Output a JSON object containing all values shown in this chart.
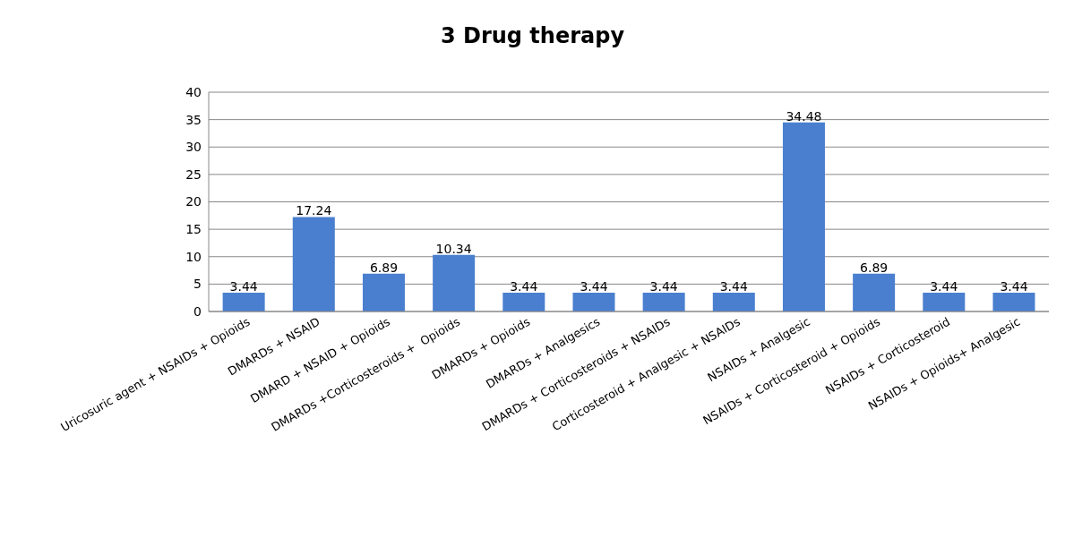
{
  "chart_data": {
    "type": "bar",
    "title": "3 Drug therapy",
    "categories": [
      "Uricosuric agent + NSAIDs + Opioids",
      "DMARDs + NSAID",
      "DMARD + NSAID + Opioids",
      "DMARDs +Corticosteroids +  Opioids",
      "DMARDs + Opioids",
      "DMARDs + Analgesics",
      "DMARDs + Corticosteroids + NSAIDs",
      "Corticosteroid + Analgesic + NSAIDs",
      "NSAIDs + Analgesic",
      "NSAIDs + Corticosteroid + Opioids",
      "NSAIDs + Corticosteroid",
      "NSAIDs + Opioids+ Analgesic"
    ],
    "values": [
      3.44,
      17.24,
      6.89,
      10.34,
      3.44,
      3.44,
      3.44,
      3.44,
      34.48,
      6.89,
      3.44,
      3.44
    ],
    "color": "#4a7fcf",
    "ylim": [
      0,
      40
    ],
    "yticks": [
      0,
      5,
      10,
      15,
      20,
      25,
      30,
      35,
      40
    ],
    "grid": "y",
    "data_labels": true
  }
}
